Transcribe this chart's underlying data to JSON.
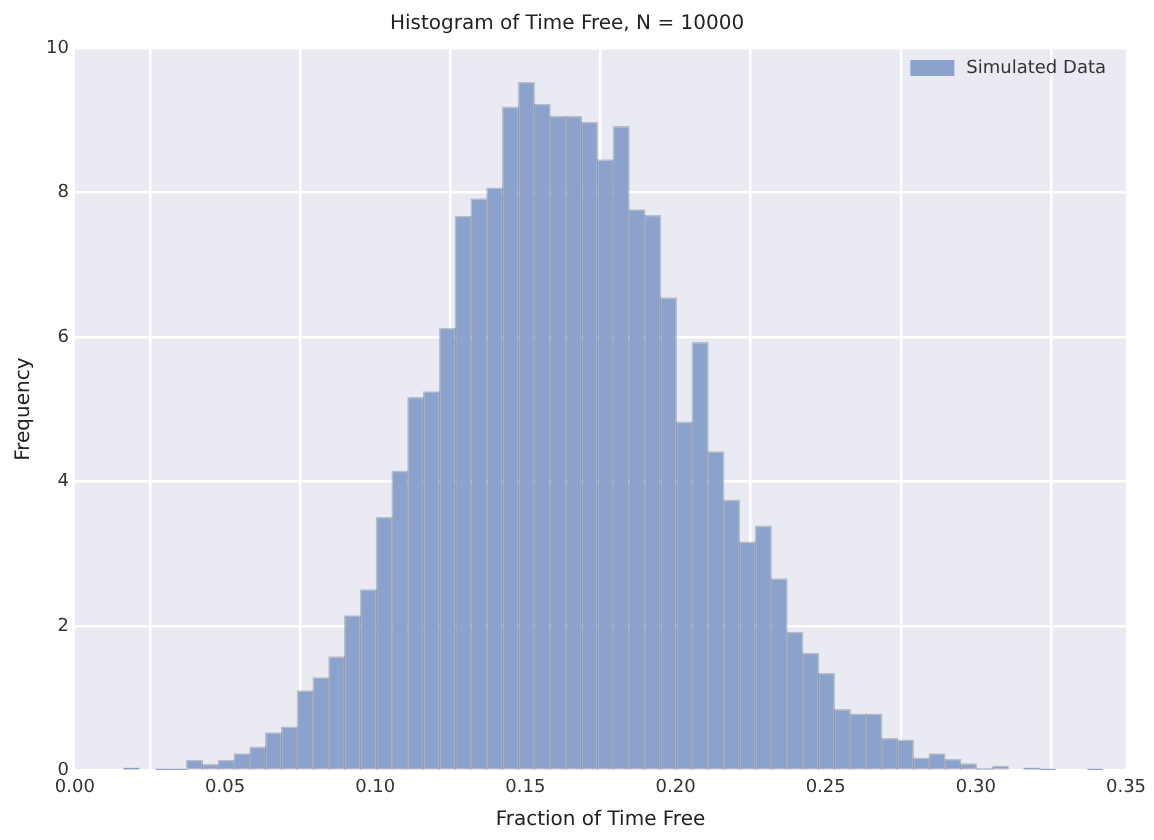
{
  "chart_data": {
    "type": "histogram",
    "title": "Histogram of Time Free, N = 10000",
    "xlabel": "Fraction of Time Free",
    "ylabel": "Frequency",
    "bins": [
      0.0162,
      0.0215,
      0.0267,
      0.032,
      0.0372,
      0.0425,
      0.0478,
      0.053,
      0.0583,
      0.0635,
      0.0688,
      0.0741,
      0.0793,
      0.0846,
      0.0898,
      0.0951,
      0.1004,
      0.1056,
      0.1109,
      0.1161,
      0.1214,
      0.1267,
      0.1319,
      0.1372,
      0.1424,
      0.1477,
      0.153,
      0.1582,
      0.1635,
      0.1687,
      0.174,
      0.1793,
      0.1845,
      0.1898,
      0.195,
      0.2003,
      0.2056,
      0.2108,
      0.2161,
      0.2213,
      0.2266,
      0.2319,
      0.2371,
      0.2424,
      0.2476,
      0.2529,
      0.2582,
      0.2634,
      0.2687,
      0.2739,
      0.2792,
      0.2845,
      0.2897,
      0.295,
      0.3002,
      0.3055,
      0.3108,
      0.316,
      0.3213,
      0.3265,
      0.3318,
      0.3371,
      0.3423
    ],
    "series": [
      {
        "name": "Simulated Data",
        "color": "#8ba3cc",
        "values": [
          0.03,
          0,
          0.01,
          0.01,
          0.14,
          0.08,
          0.14,
          0.23,
          0.32,
          0.52,
          0.6,
          1.1,
          1.28,
          1.57,
          2.14,
          2.5,
          3.5,
          4.14,
          5.16,
          5.24,
          6.12,
          7.67,
          7.91,
          8.06,
          9.18,
          9.52,
          9.22,
          9.05,
          9.05,
          8.97,
          8.45,
          8.91,
          7.76,
          7.68,
          6.54,
          4.82,
          5.92,
          4.41,
          3.74,
          3.16,
          3.38,
          2.65,
          1.91,
          1.62,
          1.34,
          0.84,
          0.78,
          0.78,
          0.44,
          0.42,
          0.17,
          0.23,
          0.15,
          0.09,
          0.02,
          0.06,
          0,
          0.03,
          0.01,
          0,
          0,
          0.01
        ]
      }
    ],
    "xlim": [
      0,
      0.35
    ],
    "xticks": [
      {
        "value": 0,
        "label": "0.00"
      },
      {
        "value": 0.05,
        "label": "0.05"
      },
      {
        "value": 0.1,
        "label": "0.10"
      },
      {
        "value": 0.15,
        "label": "0.15"
      },
      {
        "value": 0.2,
        "label": "0.20"
      },
      {
        "value": 0.25,
        "label": "0.25"
      },
      {
        "value": 0.3,
        "label": "0.30"
      },
      {
        "value": 0.35,
        "label": "0.35"
      }
    ],
    "ylim": [
      0,
      10
    ],
    "yticks": [
      0,
      2,
      4,
      6,
      8,
      10
    ],
    "grid": true,
    "legend": "top right"
  }
}
